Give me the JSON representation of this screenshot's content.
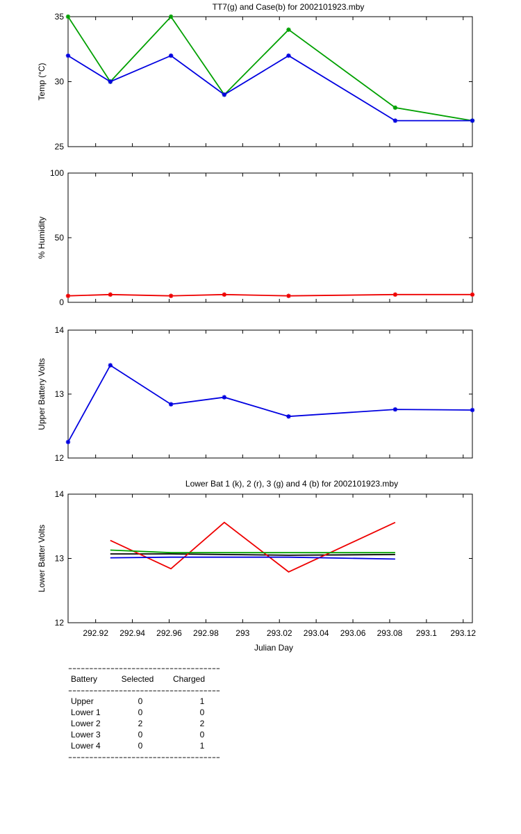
{
  "chart_data": [
    {
      "type": "line",
      "title": "TT7(g) and Case(b) for 2002101923.mby",
      "xlabel": "",
      "ylabel": "Temp  (°C)",
      "xlim": [
        292.905,
        293.125
      ],
      "ylim": [
        25,
        35
      ],
      "yticks": [
        "25",
        "30",
        "35"
      ],
      "grid": false,
      "series": [
        {
          "color": "#00a000",
          "marker": "*",
          "x": [
            292.905,
            292.928,
            292.961,
            292.99,
            293.025,
            293.083,
            293.125
          ],
          "y": [
            35,
            30,
            35,
            29,
            34,
            28,
            27
          ]
        },
        {
          "color": "#0000e0",
          "marker": "*",
          "x": [
            292.905,
            292.928,
            292.961,
            292.99,
            293.025,
            293.083,
            293.125
          ],
          "y": [
            32,
            30,
            32,
            29,
            32,
            27,
            27
          ]
        }
      ]
    },
    {
      "type": "line",
      "title": "",
      "xlabel": "",
      "ylabel": "% Humidity",
      "xlim": [
        292.905,
        293.125
      ],
      "ylim": [
        0,
        100
      ],
      "yticks": [
        "0",
        "50",
        "100"
      ],
      "grid": false,
      "series": [
        {
          "color": "#ee0000",
          "marker": "*",
          "x": [
            292.905,
            292.928,
            292.961,
            292.99,
            293.025,
            293.083,
            293.125
          ],
          "y": [
            5,
            6,
            5,
            6,
            5,
            6,
            6
          ]
        }
      ]
    },
    {
      "type": "line",
      "title": "",
      "xlabel": "",
      "ylabel": "Upper Battery Volts",
      "xlim": [
        292.905,
        293.125
      ],
      "ylim": [
        12,
        14
      ],
      "yticks": [
        "12",
        "13",
        "14"
      ],
      "grid": false,
      "series": [
        {
          "color": "#0000e0",
          "marker": "*",
          "x": [
            292.905,
            292.928,
            292.961,
            292.99,
            293.025,
            293.083,
            293.125
          ],
          "y": [
            12.25,
            13.45,
            12.84,
            12.95,
            12.65,
            12.76,
            12.75
          ]
        }
      ]
    },
    {
      "type": "line",
      "title": "Lower Bat 1 (k), 2 (r), 3 (g) and 4 (b) for 2002101923.mby",
      "xlabel": "Julian Day",
      "ylabel": "Lower Batter Volts",
      "xlim": [
        292.905,
        293.125
      ],
      "ylim": [
        12,
        14
      ],
      "yticks": [
        "12",
        "13",
        "14"
      ],
      "xticks": [
        "292.92",
        "292.94",
        "292.96",
        "292.98",
        "293",
        "293.02",
        "293.04",
        "293.06",
        "293.08",
        "293.1",
        "293.12"
      ],
      "grid": false,
      "series": [
        {
          "color": "#000000",
          "x": [
            292.928,
            292.961,
            293.025,
            293.083
          ],
          "y": [
            13.07,
            13.07,
            13.05,
            13.06
          ]
        },
        {
          "color": "#ee0000",
          "x": [
            292.928,
            292.961,
            292.99,
            293.025,
            293.083
          ],
          "y": [
            13.28,
            12.84,
            13.56,
            12.79,
            13.56
          ]
        },
        {
          "color": "#00a000",
          "x": [
            292.928,
            292.961,
            293.025,
            293.083
          ],
          "y": [
            13.13,
            13.09,
            13.09,
            13.09
          ]
        },
        {
          "color": "#0000e0",
          "x": [
            292.928,
            292.961,
            293.025,
            293.083
          ],
          "y": [
            13.01,
            13.02,
            13.02,
            12.99
          ]
        }
      ]
    }
  ],
  "battery_table": {
    "rule": "------------------------------------",
    "headers": [
      "Battery",
      "Selected",
      "Charged"
    ],
    "rows": [
      [
        "Upper",
        "0",
        "1"
      ],
      [
        "Lower 1",
        "0",
        "0"
      ],
      [
        "Lower 2",
        "2",
        "2"
      ],
      [
        "Lower 3",
        "0",
        "0"
      ],
      [
        "Lower 4",
        "0",
        "1"
      ]
    ]
  }
}
